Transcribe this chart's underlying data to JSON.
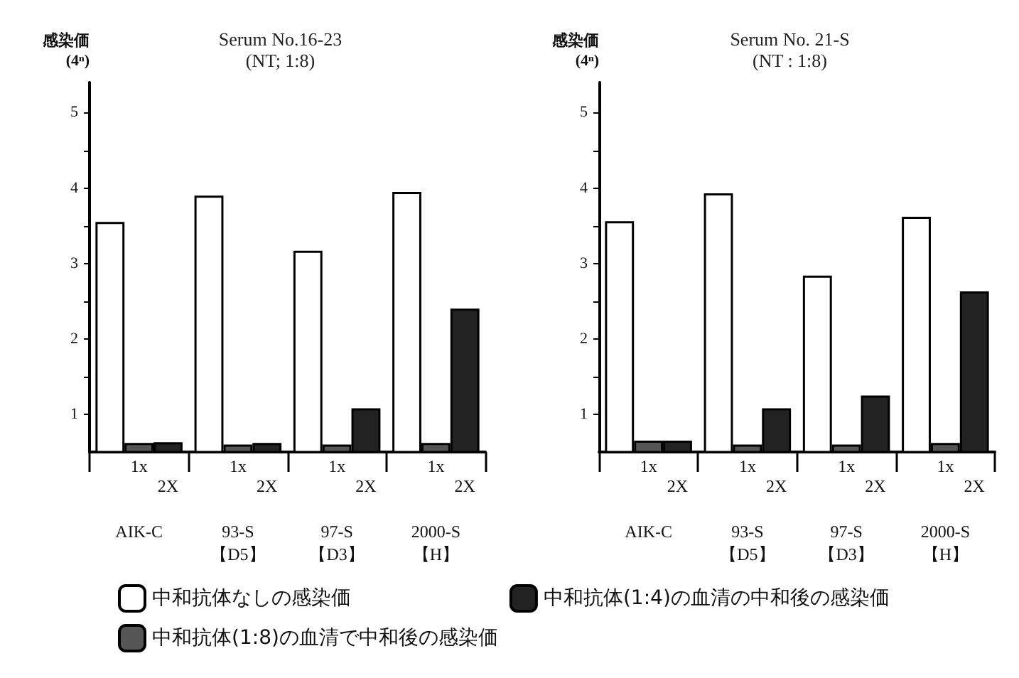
{
  "chart_data": [
    {
      "type": "bar",
      "title": "Serum No.16-23",
      "subtitle": "(NT; 1:8)",
      "ylabel": "感染価\n(4ⁿ)",
      "categories": [
        "AIK-C",
        "93-S\n【D5】",
        "97-S\n【D3】",
        "2000-S\n【H】"
      ],
      "series": [
        {
          "name": "中和抗体なしの感染価",
          "color": "#ffffff",
          "values": [
            3.55,
            3.9,
            3.17,
            3.95
          ]
        },
        {
          "name": "中和抗体(1:8)の血清で中和後の感染価",
          "color": "#555555",
          "values": [
            0.62,
            0.6,
            0.6,
            0.62
          ]
        },
        {
          "name": "中和抗体(1:4)の血清の中和後の感染価",
          "color": "#222222",
          "values": [
            0.63,
            0.62,
            1.08,
            2.4
          ]
        }
      ],
      "ylim": [
        0.5,
        5.4
      ],
      "yticks": [
        1,
        {
          "value": 1.5,
          "label": null
        },
        2,
        {
          "value": 2.5,
          "label": null
        },
        3,
        {
          "value": 3.5,
          "label": null
        },
        4,
        {
          "value": 4.5,
          "label": null
        },
        5
      ],
      "annotations": [
        "1x",
        "2X",
        "1x",
        "2X",
        "1x",
        "2X",
        "1x",
        "2X"
      ],
      "grid": false,
      "legend": "bottom"
    },
    {
      "type": "bar",
      "title": "Serum No. 21-S",
      "subtitle": "(NT : 1:8)",
      "ylabel": "感染価\n(4ⁿ)",
      "categories": [
        "AIK-C",
        "93-S\n【D5】",
        "97-S\n【D3】",
        "2000-S\n【H】"
      ],
      "series": [
        {
          "name": "中和抗体なしの感染価",
          "color": "#ffffff",
          "values": [
            3.56,
            3.93,
            2.84,
            3.62
          ]
        },
        {
          "name": "中和抗体(1:8)の血清で中和後の感染価",
          "color": "#555555",
          "values": [
            0.65,
            0.6,
            0.6,
            0.62
          ]
        },
        {
          "name": "中和抗体(1:4)の血清の中和後の感染価",
          "color": "#222222",
          "values": [
            0.65,
            1.08,
            1.25,
            2.63
          ]
        }
      ],
      "ylim": [
        0.5,
        5.4
      ],
      "yticks": [
        1,
        {
          "value": 1.5,
          "label": null
        },
        2,
        {
          "value": 2.5,
          "label": null
        },
        3,
        {
          "value": 3.5,
          "label": null
        },
        4,
        {
          "value": 4.5,
          "label": null
        },
        5
      ],
      "annotations": [
        "1x",
        "2X",
        "1x",
        "2X",
        "1x",
        "2X",
        "1x",
        "2X"
      ],
      "grid": false,
      "legend": "bottom"
    }
  ]
}
